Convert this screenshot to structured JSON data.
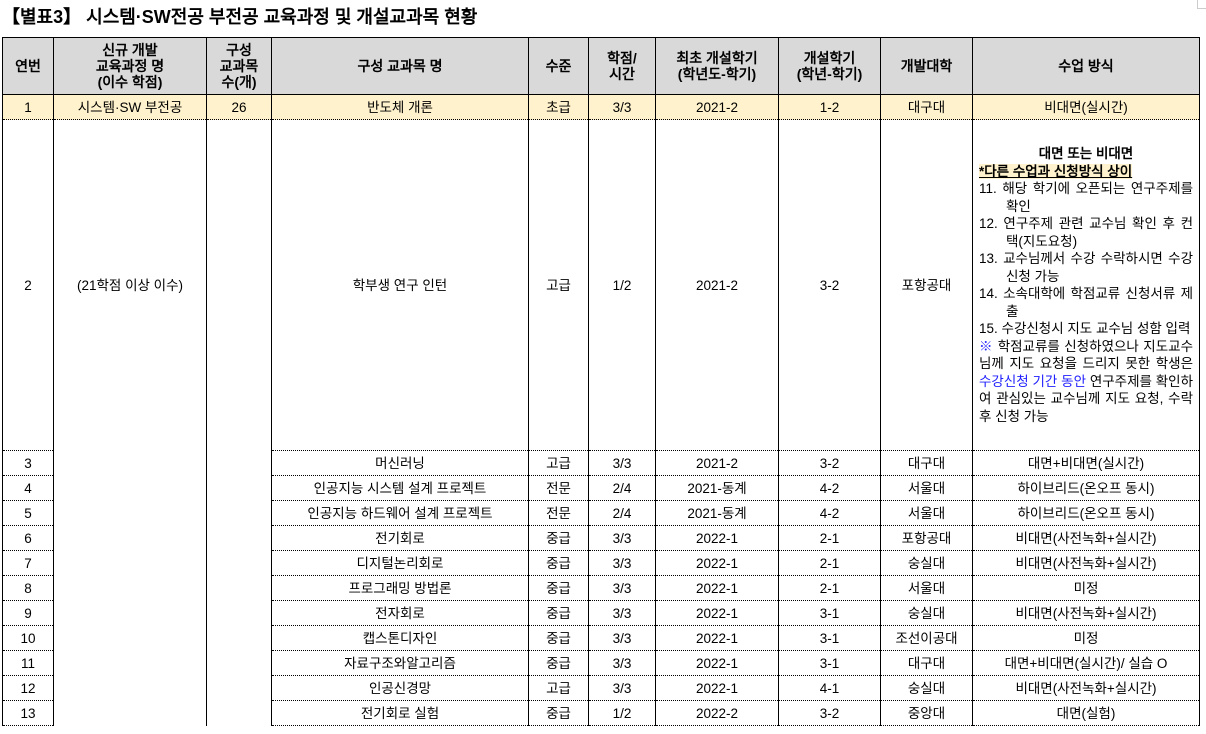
{
  "title": "【별표3】 시스템·SW전공 부전공 교육과정 및 개설교과목 현황",
  "headers": [
    "연번",
    "신규 개발\n교육과정 명\n(이수 학점)",
    "구성\n교과목\n수(개)",
    "구성 교과목 명",
    "수준",
    "학점/\n시간",
    "최초 개설학기\n(학년도-학기)",
    "개설학기\n(학년-학기)",
    "개발대학",
    "수업 방식"
  ],
  "rows": [
    {
      "no": "1",
      "program": "시스템·SW 부전공",
      "count": "26",
      "course": "반도체 개론",
      "level": "초급",
      "credit": "3/3",
      "first": "2021-2",
      "sem": "1-2",
      "univ": "대구대",
      "method": "비대면(실시간)"
    },
    {
      "no": "2",
      "program": "(21학점 이상 이수)",
      "count": "",
      "course": "학부생 연구 인턴",
      "level": "고급",
      "credit": "1/2",
      "first": "2021-2",
      "sem": "3-2",
      "univ": "포항공대",
      "method": ""
    },
    {
      "no": "3",
      "program": "",
      "count": "",
      "course": "머신러닝",
      "level": "고급",
      "credit": "3/3",
      "first": "2021-2",
      "sem": "3-2",
      "univ": "대구대",
      "method": "대면+비대면(실시간)"
    },
    {
      "no": "4",
      "program": "",
      "count": "",
      "course": "인공지능 시스템 설계 프로젝트",
      "level": "전문",
      "credit": "2/4",
      "first": "2021-동계",
      "sem": "4-2",
      "univ": "서울대",
      "method": "하이브리드(온오프 동시)"
    },
    {
      "no": "5",
      "program": "",
      "count": "",
      "course": "인공지능 하드웨어 설계 프로젝트",
      "level": "전문",
      "credit": "2/4",
      "first": "2021-동계",
      "sem": "4-2",
      "univ": "서울대",
      "method": "하이브리드(온오프 동시)"
    },
    {
      "no": "6",
      "program": "",
      "count": "",
      "course": "전기회로",
      "level": "중급",
      "credit": "3/3",
      "first": "2022-1",
      "sem": "2-1",
      "univ": "포항공대",
      "method": "비대면(사전녹화+실시간)"
    },
    {
      "no": "7",
      "program": "",
      "count": "",
      "course": "디지털논리회로",
      "level": "중급",
      "credit": "3/3",
      "first": "2022-1",
      "sem": "2-1",
      "univ": "숭실대",
      "method": "비대면(사전녹화+실시간)"
    },
    {
      "no": "8",
      "program": "",
      "count": "",
      "course": "프로그래밍 방법론",
      "level": "중급",
      "credit": "3/3",
      "first": "2022-1",
      "sem": "2-1",
      "univ": "서울대",
      "method": "미정"
    },
    {
      "no": "9",
      "program": "",
      "count": "",
      "course": "전자회로",
      "level": "중급",
      "credit": "3/3",
      "first": "2022-1",
      "sem": "3-1",
      "univ": "숭실대",
      "method": "비대면(사전녹화+실시간)"
    },
    {
      "no": "10",
      "program": "",
      "count": "",
      "course": "캡스톤디자인",
      "level": "중급",
      "credit": "3/3",
      "first": "2022-1",
      "sem": "3-1",
      "univ": "조선이공대",
      "method": "미정"
    },
    {
      "no": "11",
      "program": "",
      "count": "",
      "course": "자료구조와알고리즘",
      "level": "중급",
      "credit": "3/3",
      "first": "2022-1",
      "sem": "3-1",
      "univ": "대구대",
      "method": "대면+비대면(실시간)/ 실습 O"
    },
    {
      "no": "12",
      "program": "",
      "count": "",
      "course": "인공신경망",
      "level": "고급",
      "credit": "3/3",
      "first": "2022-1",
      "sem": "4-1",
      "univ": "숭실대",
      "method": "비대면(사전녹화+실시간)"
    },
    {
      "no": "13",
      "program": "",
      "count": "",
      "course": "전기회로 실험",
      "level": "중급",
      "credit": "1/2",
      "first": "2022-2",
      "sem": "3-2",
      "univ": "중앙대",
      "method": "대면(실험)"
    }
  ],
  "row2_method": {
    "heading": "대면 또는 비대면",
    "subheading": "*다른 수업과 신청방식 상이",
    "items": [
      "11. 해당 학기에 오픈되는 연구주제를 확인",
      "12. 연구주제 관련 교수님 확인 후 컨택(지도요청)",
      "13. 교수님께서 수강 수락하시면 수강신청 가능",
      "14. 소속대학에 학점교류 신청서류 제출",
      "15. 수강신청시 지도 교수님 성함 입력"
    ],
    "note_start": "※",
    "note_a": " 학점교류를 신청하였으나 지도교수님께 지도 요청을 드리지 못한 학생은 ",
    "note_blue": "수강신청 기간 동안",
    "note_b": " 연구주제를 확인하여 관심있는 교수님께 지도 요청, 수락 후 신청 가능"
  },
  "colors": {
    "header_bg": "#d9d9d9",
    "highlight_row": "#fff2cc",
    "note_blue": "#1f1fff"
  }
}
